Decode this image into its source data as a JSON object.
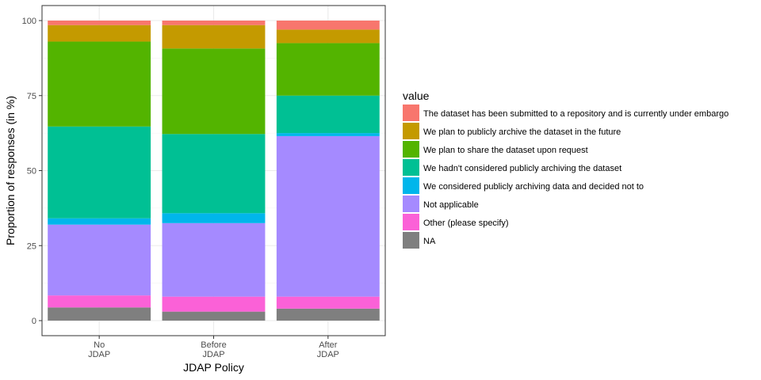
{
  "chart_data": {
    "type": "bar",
    "stacked": true,
    "xlabel": "JDAP Policy",
    "ylabel": "Proportion of responses (in %)",
    "ylim": [
      0,
      100
    ],
    "yticks": [
      "0",
      "25",
      "50",
      "75",
      "100"
    ],
    "categories": [
      "No\nJDAP",
      "Before\nJDAP",
      "After\nJDAP"
    ],
    "grid": true,
    "legend": {
      "title": "value",
      "position": "right"
    },
    "series": [
      {
        "name": "The dataset has been submitted to a repository and is currently under embargo",
        "color": "#F8766D",
        "values": [
          1.5,
          1.5,
          3.0
        ]
      },
      {
        "name": "We plan to publicly archive the dataset in the future",
        "color": "#C49A00",
        "values": [
          5.5,
          7.8,
          4.5
        ]
      },
      {
        "name": "We plan to share the dataset upon request",
        "color": "#53B400",
        "values": [
          28.3,
          28.5,
          17.5
        ]
      },
      {
        "name": "We hadn't considered publicly archiving the dataset",
        "color": "#00C094",
        "values": [
          30.6,
          26.4,
          12.5
        ]
      },
      {
        "name": "We considered publicly archiving data and decided not to",
        "color": "#00B6EB",
        "values": [
          2.1,
          3.3,
          1.0
        ]
      },
      {
        "name": "Not applicable",
        "color": "#A58AFF",
        "values": [
          23.6,
          24.5,
          53.5
        ]
      },
      {
        "name": "Other (please specify)",
        "color": "#FB61D7",
        "values": [
          4.0,
          5.0,
          4.0
        ]
      },
      {
        "name": "NA",
        "color": "#7F7F7F",
        "values": [
          4.4,
          3.0,
          4.0
        ]
      }
    ]
  }
}
